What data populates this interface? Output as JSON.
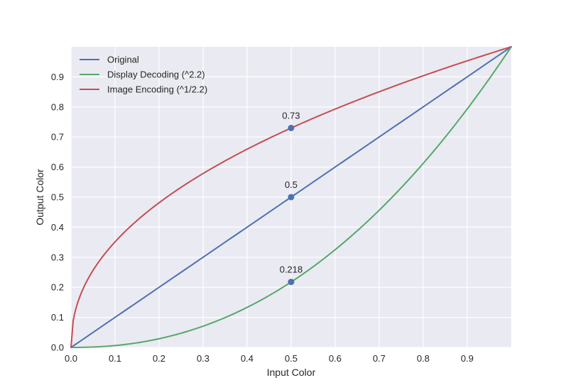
{
  "chart_data": {
    "type": "line",
    "xlabel": "Input Color",
    "ylabel": "Output Color",
    "xlim": [
      0,
      1
    ],
    "ylim": [
      0,
      1
    ],
    "xticks": [
      "0.0",
      "0.1",
      "0.2",
      "0.3",
      "0.4",
      "0.5",
      "0.6",
      "0.7",
      "0.8",
      "0.9"
    ],
    "yticks": [
      "0.0",
      "0.1",
      "0.2",
      "0.3",
      "0.4",
      "0.5",
      "0.6",
      "0.7",
      "0.8",
      "0.9"
    ],
    "grid": true,
    "legend_position": "top-left",
    "series": [
      {
        "name": "Original",
        "color": "#4c72b0",
        "gamma": 1.0,
        "x": [
          0,
          0.1,
          0.2,
          0.3,
          0.4,
          0.5,
          0.6,
          0.7,
          0.8,
          0.9,
          1.0
        ],
        "y": [
          0,
          0.1,
          0.2,
          0.3,
          0.4,
          0.5,
          0.6,
          0.7,
          0.8,
          0.9,
          1.0
        ]
      },
      {
        "name": "Display Decoding (^2.2)",
        "color": "#55a868",
        "gamma": 2.2,
        "x": [
          0,
          0.1,
          0.2,
          0.3,
          0.4,
          0.5,
          0.6,
          0.7,
          0.8,
          0.9,
          1.0
        ],
        "y": [
          0,
          0.006,
          0.029,
          0.071,
          0.133,
          0.218,
          0.325,
          0.456,
          0.612,
          0.793,
          1.0
        ]
      },
      {
        "name": "Image Encoding (^1/2.2)",
        "color": "#c44e52",
        "gamma": 0.4545,
        "x": [
          0,
          0.1,
          0.2,
          0.3,
          0.4,
          0.5,
          0.6,
          0.7,
          0.8,
          0.9,
          1.0
        ],
        "y": [
          0,
          0.351,
          0.481,
          0.578,
          0.659,
          0.73,
          0.793,
          0.85,
          0.904,
          0.953,
          1.0
        ]
      }
    ],
    "annotations": [
      {
        "x": 0.5,
        "y": 0.73,
        "label": "0.73"
      },
      {
        "x": 0.5,
        "y": 0.5,
        "label": "0.5"
      },
      {
        "x": 0.5,
        "y": 0.218,
        "label": "0.218"
      }
    ],
    "marker_color": "#4c72b0"
  }
}
